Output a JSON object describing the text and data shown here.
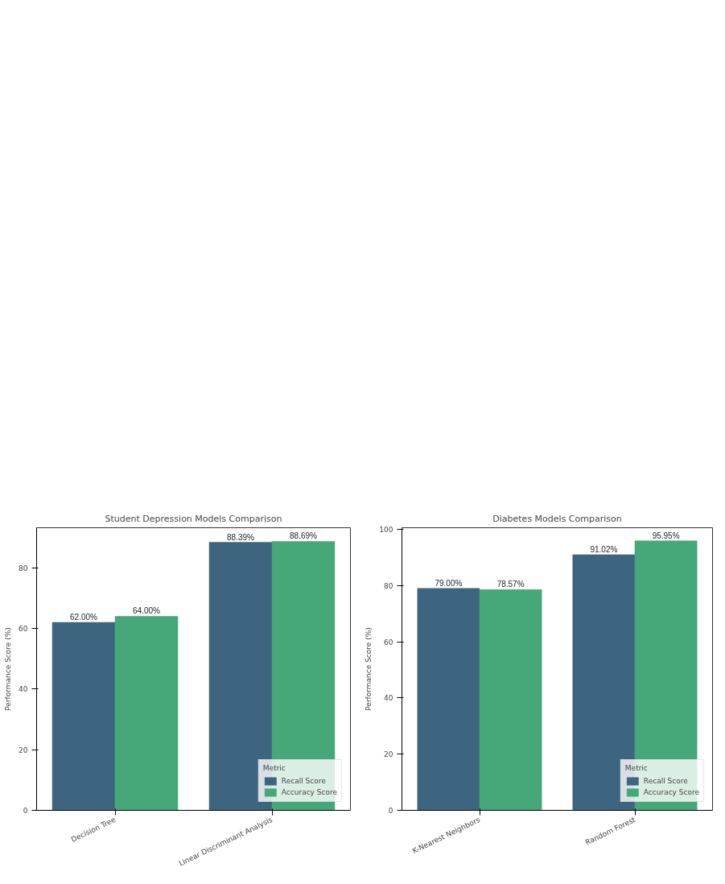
{
  "chart_data": [
    {
      "type": "bar",
      "title": "Student Depression Models Comparison",
      "ylabel": "Performance Score (%)",
      "legend_title": "Metric",
      "legend": "bottom right",
      "grid": false,
      "categories": [
        "Decision Tree",
        "Linear Discriminant Analysis"
      ],
      "ylim": [
        0,
        93.2
      ],
      "yticks": [
        0,
        20,
        40,
        60,
        80
      ],
      "series": [
        {
          "name": "Recall Score",
          "color": "#3e6580",
          "values": [
            62.0,
            88.39
          ],
          "value_labels": [
            "62.00%",
            "88.39%"
          ]
        },
        {
          "name": "Accuracy Score",
          "color": "#46a878",
          "values": [
            64.0,
            88.69
          ],
          "value_labels": [
            "64.00%",
            "88.69%"
          ]
        }
      ]
    },
    {
      "type": "bar",
      "title": "Diabetes Models Comparison",
      "ylabel": "Performance Score (%)",
      "legend_title": "Metric",
      "legend": "bottom right",
      "grid": false,
      "categories": [
        "K-Nearest Neighbors",
        "Random Forest"
      ],
      "ylim": [
        0,
        100.6
      ],
      "yticks": [
        0,
        20,
        40,
        60,
        80,
        100
      ],
      "series": [
        {
          "name": "Recall Score",
          "color": "#3e6580",
          "values": [
            79.0,
            91.02
          ],
          "value_labels": [
            "79.00%",
            "91.02%"
          ]
        },
        {
          "name": "Accuracy Score",
          "color": "#46a878",
          "values": [
            78.57,
            95.95
          ],
          "value_labels": [
            "78.57%",
            "95.95%"
          ]
        }
      ]
    }
  ]
}
